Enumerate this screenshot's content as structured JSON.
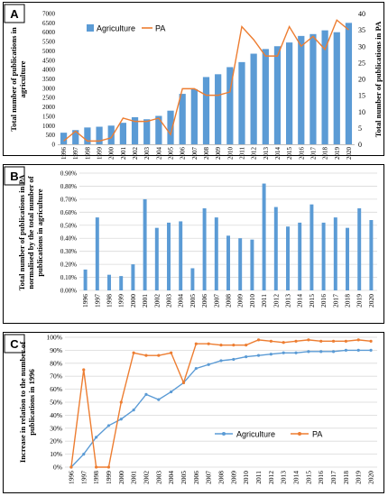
{
  "chart_data": [
    {
      "panel": "A",
      "type": "bar+line",
      "categories": [
        "1996",
        "1997",
        "1998",
        "1999",
        "2000",
        "2001",
        "2002",
        "2003",
        "2004",
        "2005",
        "2006",
        "2007",
        "2008",
        "2009",
        "2010",
        "2011",
        "2012",
        "2013",
        "2014",
        "2015",
        "2016",
        "2017",
        "2018",
        "2019",
        "2020"
      ],
      "series": [
        {
          "name": "Agriculture",
          "type": "bar",
          "axis": "left",
          "color": "#5b9bd5",
          "values": [
            620,
            760,
            900,
            940,
            1000,
            1150,
            1450,
            1340,
            1520,
            1800,
            2700,
            2950,
            3600,
            3750,
            4130,
            4400,
            4850,
            5100,
            5250,
            5450,
            5800,
            5900,
            6100,
            6000,
            6500
          ]
        },
        {
          "name": "PA",
          "type": "line",
          "axis": "right",
          "color": "#ed7d31",
          "values": [
            1,
            4,
            1,
            1,
            2,
            8,
            7,
            7,
            8,
            3,
            17,
            17,
            15,
            15,
            16,
            36,
            32,
            27,
            27,
            36,
            30,
            33,
            29,
            38,
            35
          ]
        }
      ],
      "ylabel_left": "Total number of publications in agriculture",
      "ylabel_right": "Total number of publications in PA",
      "ylim_left": [
        0,
        7000
      ],
      "yticks_left": [
        "0",
        "500",
        "1000",
        "1500",
        "2000",
        "2500",
        "3000",
        "3500",
        "4000",
        "4500",
        "5000",
        "5500",
        "6000",
        "6500",
        "7000"
      ],
      "ylim_right": [
        0,
        40
      ],
      "yticks_right": [
        "0",
        "5",
        "10",
        "15",
        "20",
        "25",
        "30",
        "35",
        "40"
      ],
      "legend": "top-left",
      "grid": false
    },
    {
      "panel": "B",
      "type": "bar",
      "categories": [
        "1996",
        "1997",
        "1998",
        "1999",
        "2000",
        "2001",
        "2002",
        "2003",
        "2004",
        "2005",
        "2006",
        "2007",
        "2008",
        "2009",
        "2010",
        "2011",
        "2012",
        "2013",
        "2014",
        "2015",
        "2016",
        "2017",
        "2018",
        "2019",
        "2020"
      ],
      "values": [
        0.16,
        0.56,
        0.12,
        0.11,
        0.2,
        0.7,
        0.48,
        0.52,
        0.53,
        0.17,
        0.63,
        0.56,
        0.42,
        0.4,
        0.39,
        0.82,
        0.64,
        0.49,
        0.52,
        0.66,
        0.52,
        0.56,
        0.48,
        0.63,
        0.54
      ],
      "color": "#5b9bd5",
      "ylabel": "Total number of publications in PA normalised by the total number of publications in agriculture",
      "ylim": [
        0,
        0.9
      ],
      "yticks": [
        "0.00%",
        "0.10%",
        "0.20%",
        "0.30%",
        "0.40%",
        "0.50%",
        "0.60%",
        "0.70%",
        "0.80%",
        "0.90%"
      ],
      "grid": true
    },
    {
      "panel": "C",
      "type": "line",
      "categories": [
        "1996",
        "1997",
        "1998",
        "1999",
        "2000",
        "2001",
        "2002",
        "2003",
        "2004",
        "2005",
        "2006",
        "2007",
        "2008",
        "2009",
        "2010",
        "2011",
        "2012",
        "2013",
        "2014",
        "2015",
        "2016",
        "2017",
        "2018",
        "2019",
        "2020"
      ],
      "series": [
        {
          "name": "Agriculture",
          "color": "#5b9bd5",
          "values": [
            0,
            10,
            23,
            32,
            37,
            44,
            56,
            52,
            58,
            65,
            76,
            79,
            82,
            83,
            85,
            86,
            87,
            88,
            88,
            89,
            89,
            89,
            90,
            90,
            90
          ]
        },
        {
          "name": "PA",
          "color": "#ed7d31",
          "values": [
            0,
            75,
            0,
            0,
            50,
            88,
            86,
            86,
            88,
            65,
            95,
            95,
            94,
            94,
            94,
            98,
            97,
            96,
            97,
            98,
            97,
            97,
            97,
            98,
            97
          ]
        }
      ],
      "ylabel": "Increase in relation to the number of publications in 1996",
      "ylim": [
        0,
        100
      ],
      "yticks": [
        "0%",
        "10%",
        "20%",
        "30%",
        "40%",
        "50%",
        "60%",
        "70%",
        "80%",
        "90%",
        "100%"
      ],
      "legend": "bottom-right",
      "grid": true
    }
  ],
  "colors": {
    "bar": "#5b9bd5",
    "line_orange": "#ed7d31",
    "frame": "#000000",
    "grid": "#d9d9d9"
  }
}
